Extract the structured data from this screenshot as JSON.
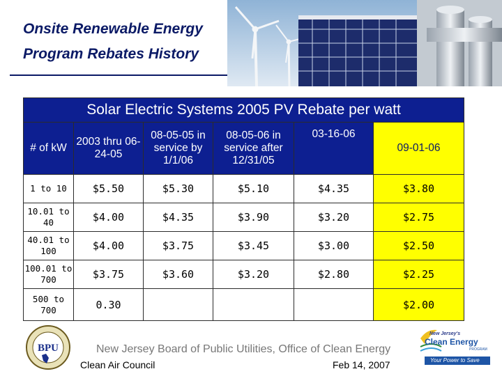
{
  "title": {
    "line1": "Onsite Renewable Energy",
    "line2": "Program Rebates History"
  },
  "table": {
    "banner": "Solar Electric Systems 2005 PV Rebate per watt",
    "header": {
      "size_col": "# of kW",
      "periods": [
        "2003 thru 06-24-05",
        "08-05-05 in service by 1/1/06",
        "08-05-06 in service after 12/31/05",
        "03-16-06",
        "09-01-06"
      ]
    },
    "rows": [
      {
        "size": "1 to 10",
        "values": [
          "$5.50",
          "$5.30",
          "$5.10",
          "$4.35",
          "$3.80"
        ]
      },
      {
        "size": "10.01 to 40",
        "values": [
          "$4.00",
          "$4.35",
          "$3.90",
          "$3.20",
          "$2.75"
        ]
      },
      {
        "size": "40.01 to 100",
        "values": [
          "$4.00",
          "$3.75",
          "$3.45",
          "$3.00",
          "$2.50"
        ]
      },
      {
        "size": "100.01 to 700",
        "values": [
          "$3.75",
          "$3.60",
          "$3.20",
          "$2.80",
          "$2.25"
        ]
      },
      {
        "size": "500 to 700",
        "values": [
          "0.30",
          "",
          "",
          "",
          "$2.00"
        ]
      }
    ],
    "colors": {
      "header_blue": "#0d1f91",
      "highlight_yellow": "#ffff00",
      "title_navy": "#0b1a66"
    }
  },
  "footer": {
    "organization": "New Jersey Board of Public Utilities, Office of Clean Energy",
    "left_credit": "Clean Air Council",
    "date": "Feb 14, 2007",
    "seal_text": "BPU",
    "logo": {
      "tag": "New Jersey's",
      "name": "Clean Energy",
      "sub": "PROGRAM",
      "slogan": "Your Power to Save"
    }
  },
  "icons": [
    "wind-turbine-icon",
    "solar-panel-icon",
    "industrial-pipe-icon",
    "bpu-seal-icon",
    "clean-energy-logo-icon"
  ]
}
